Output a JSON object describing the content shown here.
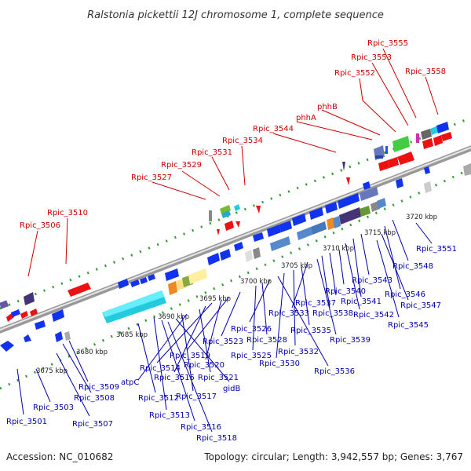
{
  "title": "Ralstonia pickettii 12J chromosome 1, complete sequence",
  "footer": {
    "accession": "Accession: NC_010682",
    "topology": "Topology: circular; Length: 3,942,557 bp; Genes: 3,767"
  },
  "kbp_labels": [
    "3675 kbp",
    "3680 kbp",
    "3685 kbp",
    "3690 kbp",
    "3695 kbp",
    "3700 kbp",
    "3705 kbp",
    "3710 kbp",
    "3715 kbp",
    "3720 kbp"
  ],
  "top_labels": [
    "Rpic_3555",
    "Rpic_3553",
    "Rpic_3552",
    "Rpic_3558",
    "phhB",
    "phhA",
    "Rpic_3544",
    "Rpic_3534",
    "Rpic_3531",
    "Rpic_3529",
    "Rpic_3527",
    "Rpic_3510",
    "Rpic_3506"
  ],
  "bottom_labels": [
    "Rpic_3551",
    "Rpic_3548",
    "Rpic_3546",
    "Rpic_3547",
    "Rpic_3545",
    "Rpic_3543",
    "Rpic_3541",
    "Rpic_3542",
    "Rpic_3540",
    "Rpic_3537",
    "Rpic_3538",
    "Rpic_3539",
    "Rpic_3533",
    "Rpic_3535",
    "Rpic_3532",
    "Rpic_3530",
    "Rpic_3536",
    "Rpic_3526",
    "Rpic_3528",
    "Rpic_3525",
    "Rpic_3523",
    "Rpic_3519",
    "Rpic_3520",
    "Rpic_3514",
    "Rpic_3515",
    "Rpic_3521",
    "atpC",
    "Rpic_3517",
    "gidB",
    "Rpic_3509",
    "Rpic_3512",
    "Rpic_3508",
    "Rpic_3513",
    "Rpic_3516",
    "Rpic_3503",
    "Rpic_3518",
    "Rpic_3507",
    "Rpic_3501"
  ],
  "colors": {
    "forward": "#ee1111",
    "reverse": "#1133ee",
    "backbone": "#888888",
    "tick": "#339933"
  }
}
